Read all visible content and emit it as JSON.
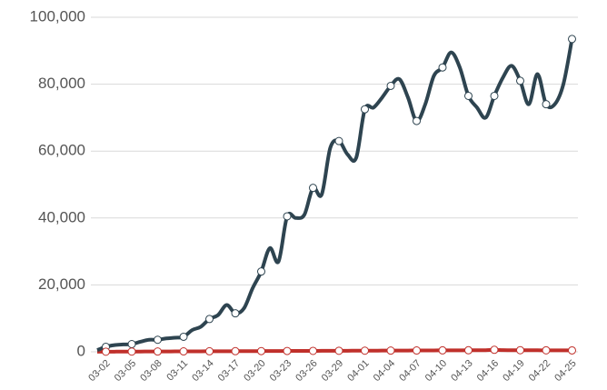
{
  "chart_data": {
    "type": "line",
    "categories": [
      null,
      "03-02",
      null,
      null,
      "03-05",
      null,
      null,
      "03-08",
      null,
      null,
      "03-11",
      null,
      null,
      "03-14",
      null,
      null,
      "03-17",
      null,
      null,
      "03-20",
      null,
      null,
      "03-23",
      null,
      null,
      "03-26",
      null,
      null,
      "03-29",
      null,
      null,
      "04-01",
      null,
      null,
      "04-04",
      null,
      null,
      "04-07",
      null,
      null,
      "04-10",
      null,
      null,
      "04-13",
      null,
      null,
      "04-16",
      null,
      null,
      "04-19",
      null,
      null,
      "04-22",
      null,
      null,
      "04-25"
    ],
    "series": [
      {
        "color": "#2e4450",
        "values": [
          500,
          1500,
          2000,
          2200,
          2300,
          3000,
          3600,
          3600,
          4000,
          4200,
          4500,
          6500,
          7500,
          9800,
          11000,
          14000,
          11500,
          13000,
          19000,
          24000,
          31000,
          27000,
          40500,
          40000,
          41000,
          49000,
          47000,
          61000,
          63000,
          59000,
          58000,
          72500,
          73000,
          76000,
          79500,
          81500,
          76000,
          69000,
          74000,
          82500,
          85000,
          89500,
          85000,
          76500,
          73000,
          70000,
          76500,
          82000,
          85500,
          81000,
          74000,
          83000,
          74000,
          74000,
          80000,
          93500
        ]
      },
      {
        "color": "#c0302b",
        "values": [
          20,
          40,
          50,
          60,
          70,
          80,
          90,
          100,
          110,
          120,
          130,
          140,
          150,
          160,
          170,
          180,
          190,
          200,
          210,
          220,
          230,
          240,
          250,
          260,
          270,
          280,
          290,
          300,
          310,
          320,
          330,
          340,
          350,
          360,
          370,
          380,
          390,
          400,
          410,
          420,
          430,
          440,
          450,
          460,
          470,
          480,
          600,
          500,
          490,
          480,
          470,
          460,
          450,
          440,
          430,
          420
        ]
      }
    ],
    "ylim": [
      0,
      100000
    ],
    "yticks": [
      0,
      {
        "value": 20000,
        "label": "20,000"
      },
      {
        "value": 40000,
        "label": "40,000"
      },
      {
        "value": 60000,
        "label": "60,000"
      },
      {
        "value": 80000,
        "label": "80,000"
      },
      {
        "value": 100000,
        "label": "100,000"
      }
    ],
    "grid": true
  }
}
